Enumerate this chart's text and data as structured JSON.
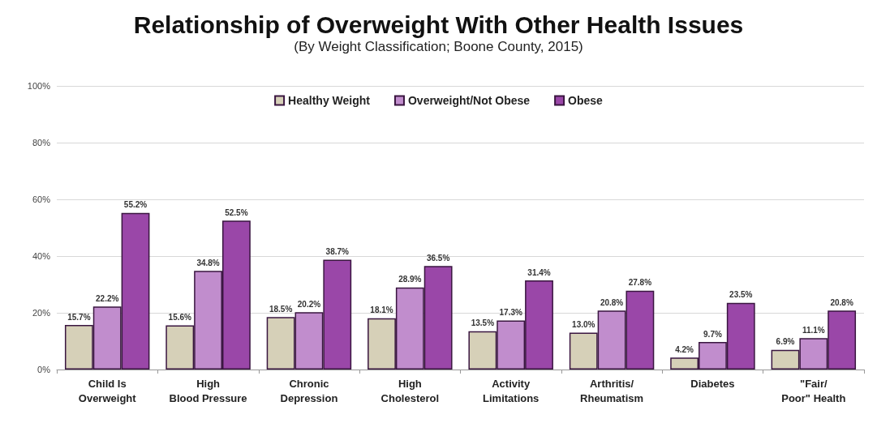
{
  "chart_data": {
    "type": "bar",
    "title": "Relationship of Overweight With Other Health Issues",
    "subtitle": "(By Weight Classification; Boone County, 2015)",
    "categories": [
      "Child Is\nOverweight",
      "High\nBlood Pressure",
      "Chronic\nDepression",
      "High\nCholesterol",
      "Activity\nLimitations",
      "Arthritis/\nRheumatism",
      "Diabetes",
      "\"Fair/\nPoor\" Health"
    ],
    "series": [
      {
        "name": "Healthy Weight",
        "color": "#d6d0b8",
        "values": [
          15.7,
          15.6,
          18.5,
          18.1,
          13.5,
          13.0,
          4.2,
          6.9
        ],
        "value_labels": [
          "15.7%",
          "15.6%",
          "18.5%",
          "18.1%",
          "13.5%",
          "13.0%",
          "4.2%",
          "6.9%"
        ]
      },
      {
        "name": "Overweight/Not Obese",
        "color": "#c18dcd",
        "values": [
          22.2,
          34.8,
          20.2,
          28.9,
          17.3,
          20.8,
          9.7,
          11.1
        ],
        "value_labels": [
          "22.2%",
          "34.8%",
          "20.2%",
          "28.9%",
          "17.3%",
          "20.8%",
          "9.7%",
          "11.1%"
        ]
      },
      {
        "name": "Obese",
        "color": "#9a47a8",
        "values": [
          55.2,
          52.5,
          38.7,
          36.5,
          31.4,
          27.8,
          23.5,
          20.8
        ],
        "value_labels": [
          "55.2%",
          "52.5%",
          "38.7%",
          "36.5%",
          "31.4%",
          "27.8%",
          "23.5%",
          "20.8%"
        ]
      }
    ],
    "ylim": [
      0,
      100
    ],
    "yticks": [
      {
        "value": 0,
        "label": "0%"
      },
      {
        "value": 20,
        "label": "20%"
      },
      {
        "value": 40,
        "label": "40%"
      },
      {
        "value": 60,
        "label": "60%"
      },
      {
        "value": 80,
        "label": "80%"
      },
      {
        "value": 100,
        "label": "100%"
      }
    ],
    "grid": "y",
    "legend": "top"
  }
}
